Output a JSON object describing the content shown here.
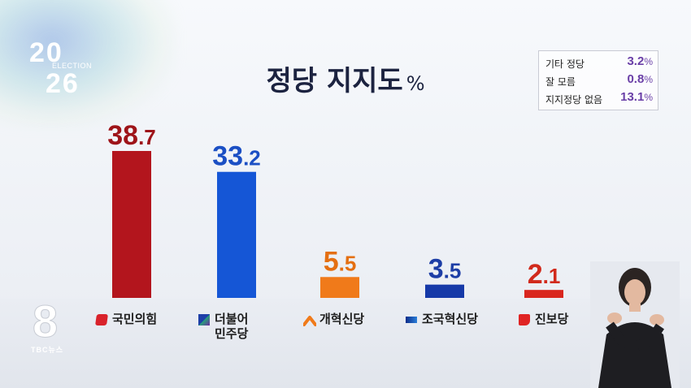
{
  "logo": {
    "year_top": "20",
    "election": "ELECTION",
    "year_bottom": "26"
  },
  "title": {
    "text": "정당 지지도",
    "unit": "%"
  },
  "info_box": [
    {
      "label": "기타 정당",
      "value": "3.2",
      "unit": "%"
    },
    {
      "label": "잘 모름",
      "value": "0.8",
      "unit": "%"
    },
    {
      "label": "지지정당 없음",
      "value": "13.1",
      "unit": "%"
    }
  ],
  "chart_data": {
    "type": "bar",
    "title": "정당 지지도",
    "unit": "%",
    "categories": [
      "국민의힘",
      "더불어\n민주당",
      "개혁신당",
      "조국혁신당",
      "진보당"
    ],
    "values": [
      38.7,
      33.2,
      5.5,
      3.5,
      2.1
    ],
    "value_labels": [
      {
        "int": "38",
        "dec": ".7"
      },
      {
        "int": "33",
        "dec": ".2"
      },
      {
        "int": "5",
        "dec": ".5"
      },
      {
        "int": "3",
        "dec": ".5"
      },
      {
        "int": "2",
        "dec": ".1"
      }
    ],
    "colors": [
      "#b3151d",
      "#1556d6",
      "#f07a1a",
      "#1639a8",
      "#d9261e"
    ],
    "label_colors": [
      "#9e1419",
      "#1b4fc4",
      "#e46f12",
      "#1d3ea6",
      "#d12a1c"
    ],
    "ylim": [
      0,
      40
    ],
    "grid": false
  },
  "channel": {
    "number": "8",
    "name": "TBC뉴스"
  }
}
